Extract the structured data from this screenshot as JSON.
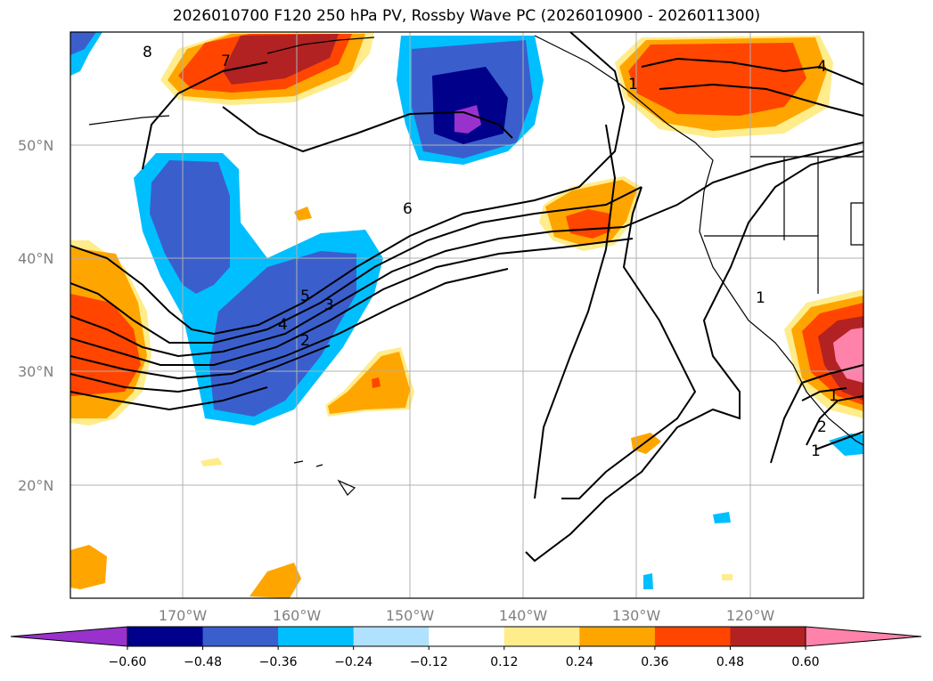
{
  "title": "2026010700 F120 250 hPa PV, Rossby Wave PC (2026010900 - 2026011300)",
  "lat_labels": [
    "50°N",
    "40°N",
    "30°N",
    "20°N"
  ],
  "lon_labels": [
    "170°W",
    "160°W",
    "150°W",
    "140°W",
    "130°W",
    "120°W"
  ],
  "colorbar": {
    "ticks": [
      "−0.60",
      "−0.48",
      "−0.36",
      "−0.24",
      "−0.12",
      "0.12",
      "0.24",
      "0.36",
      "0.48",
      "0.60"
    ],
    "colors": [
      "#9932cc",
      "#00008b",
      "#3a5fcd",
      "#00bfff",
      "#b0e2ff",
      "#ffffff",
      "#ffec8b",
      "#ffa500",
      "#ff4500",
      "#b22222",
      "#ff82ab"
    ]
  },
  "contour_labels": [
    "8",
    "7",
    "6",
    "5",
    "4",
    "3",
    "2",
    "1",
    "4",
    "1",
    "1",
    "2",
    "1"
  ]
}
